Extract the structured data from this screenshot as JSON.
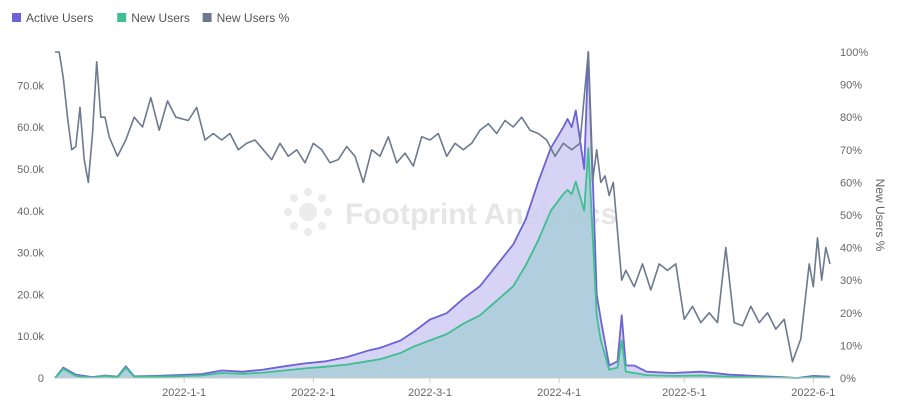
{
  "chart_data": {
    "type": "area",
    "watermark": "Footprint Analytics",
    "legend_position": "top-left",
    "grid": false,
    "x": {
      "start": "2021-12-01",
      "end": "2022-06-05",
      "ticks": [
        "2022-1-1",
        "2022-2-1",
        "2022-3-1",
        "2022-4-1",
        "2022-5-1",
        "2022-6-1"
      ]
    },
    "y_left": {
      "min": 0,
      "max": 78000,
      "ticks": [
        0,
        10000,
        20000,
        30000,
        40000,
        50000,
        60000,
        70000
      ],
      "tick_labels": [
        "0",
        "10.0k",
        "20.0k",
        "30.0k",
        "40.0k",
        "50.0k",
        "60.0k",
        "70.0k"
      ]
    },
    "y_right": {
      "title": "New Users %",
      "min": 0,
      "max": 100,
      "ticks": [
        0,
        10,
        20,
        30,
        40,
        50,
        60,
        70,
        80,
        90,
        100
      ],
      "tick_labels": [
        "0%",
        "10%",
        "20%",
        "30%",
        "40%",
        "50%",
        "60%",
        "70%",
        "80%",
        "90%",
        "100%"
      ]
    },
    "series": [
      {
        "name": "Active Users",
        "axis": "left",
        "color": "#6b63d6",
        "fill": "#cfcbf3",
        "points": [
          [
            "2021-12-01",
            0
          ],
          [
            "2021-12-03",
            2500
          ],
          [
            "2021-12-06",
            800
          ],
          [
            "2021-12-10",
            200
          ],
          [
            "2021-12-13",
            600
          ],
          [
            "2021-12-16",
            300
          ],
          [
            "2021-12-18",
            2800
          ],
          [
            "2021-12-20",
            400
          ],
          [
            "2021-12-25",
            500
          ],
          [
            "2021-12-30",
            700
          ],
          [
            "2022-01-05",
            900
          ],
          [
            "2022-01-10",
            1800
          ],
          [
            "2022-01-15",
            1500
          ],
          [
            "2022-01-20",
            2000
          ],
          [
            "2022-01-25",
            2800
          ],
          [
            "2022-01-30",
            3500
          ],
          [
            "2022-02-04",
            4000
          ],
          [
            "2022-02-09",
            5000
          ],
          [
            "2022-02-14",
            6500
          ],
          [
            "2022-02-17",
            7200
          ],
          [
            "2022-02-22",
            9000
          ],
          [
            "2022-02-25",
            11000
          ],
          [
            "2022-03-01",
            14000
          ],
          [
            "2022-03-05",
            15500
          ],
          [
            "2022-03-09",
            19000
          ],
          [
            "2022-03-13",
            22000
          ],
          [
            "2022-03-17",
            27000
          ],
          [
            "2022-03-21",
            32000
          ],
          [
            "2022-03-24",
            38000
          ],
          [
            "2022-03-27",
            47000
          ],
          [
            "2022-03-30",
            55000
          ],
          [
            "2022-04-02",
            60000
          ],
          [
            "2022-04-03",
            62000
          ],
          [
            "2022-04-04",
            60000
          ],
          [
            "2022-04-05",
            64000
          ],
          [
            "2022-04-07",
            50000
          ],
          [
            "2022-04-08",
            78000
          ],
          [
            "2022-04-09",
            50000
          ],
          [
            "2022-04-10",
            20000
          ],
          [
            "2022-04-11",
            14000
          ],
          [
            "2022-04-13",
            3000
          ],
          [
            "2022-04-15",
            4000
          ],
          [
            "2022-04-16",
            15000
          ],
          [
            "2022-04-17",
            3000
          ],
          [
            "2022-04-19",
            3000
          ],
          [
            "2022-04-22",
            1500
          ],
          [
            "2022-04-28",
            1200
          ],
          [
            "2022-05-05",
            1500
          ],
          [
            "2022-05-12",
            800
          ],
          [
            "2022-05-20",
            400
          ],
          [
            "2022-05-25",
            200
          ],
          [
            "2022-05-28",
            0
          ],
          [
            "2022-06-01",
            500
          ],
          [
            "2022-06-05",
            300
          ]
        ]
      },
      {
        "name": "New Users",
        "axis": "left",
        "color": "#3fbf8f",
        "fill": "#a9cdd8",
        "points": [
          [
            "2021-12-01",
            0
          ],
          [
            "2021-12-03",
            2200
          ],
          [
            "2021-12-06",
            500
          ],
          [
            "2021-12-10",
            100
          ],
          [
            "2021-12-13",
            500
          ],
          [
            "2021-12-16",
            200
          ],
          [
            "2021-12-18",
            2500
          ],
          [
            "2021-12-20",
            300
          ],
          [
            "2021-12-25",
            300
          ],
          [
            "2021-12-30",
            400
          ],
          [
            "2022-01-05",
            600
          ],
          [
            "2022-01-10",
            1200
          ],
          [
            "2022-01-15",
            1000
          ],
          [
            "2022-01-20",
            1300
          ],
          [
            "2022-01-25",
            1800
          ],
          [
            "2022-01-30",
            2300
          ],
          [
            "2022-02-04",
            2700
          ],
          [
            "2022-02-09",
            3200
          ],
          [
            "2022-02-14",
            4000
          ],
          [
            "2022-02-17",
            4500
          ],
          [
            "2022-02-22",
            6000
          ],
          [
            "2022-02-25",
            7500
          ],
          [
            "2022-03-01",
            9000
          ],
          [
            "2022-03-05",
            10500
          ],
          [
            "2022-03-09",
            13000
          ],
          [
            "2022-03-13",
            15000
          ],
          [
            "2022-03-17",
            18500
          ],
          [
            "2022-03-21",
            22000
          ],
          [
            "2022-03-24",
            27000
          ],
          [
            "2022-03-27",
            33000
          ],
          [
            "2022-03-30",
            40000
          ],
          [
            "2022-04-02",
            44000
          ],
          [
            "2022-04-03",
            45000
          ],
          [
            "2022-04-04",
            44000
          ],
          [
            "2022-04-05",
            47000
          ],
          [
            "2022-04-07",
            40000
          ],
          [
            "2022-04-08",
            55000
          ],
          [
            "2022-04-09",
            35000
          ],
          [
            "2022-04-10",
            15000
          ],
          [
            "2022-04-11",
            9000
          ],
          [
            "2022-04-13",
            2000
          ],
          [
            "2022-04-15",
            2500
          ],
          [
            "2022-04-16",
            9000
          ],
          [
            "2022-04-17",
            1500
          ],
          [
            "2022-04-19",
            1200
          ],
          [
            "2022-04-22",
            700
          ],
          [
            "2022-04-28",
            500
          ],
          [
            "2022-05-05",
            600
          ],
          [
            "2022-05-12",
            300
          ],
          [
            "2022-05-20",
            150
          ],
          [
            "2022-05-25",
            80
          ],
          [
            "2022-05-28",
            0
          ],
          [
            "2022-06-01",
            200
          ],
          [
            "2022-06-05",
            100
          ]
        ]
      },
      {
        "name": "New Users %",
        "axis": "right",
        "color": "#6b7a8f",
        "fill": "none",
        "points": [
          [
            "2021-12-01",
            100
          ],
          [
            "2021-12-02",
            100
          ],
          [
            "2021-12-03",
            92
          ],
          [
            "2021-12-04",
            80
          ],
          [
            "2021-12-05",
            70
          ],
          [
            "2021-12-06",
            71
          ],
          [
            "2021-12-07",
            83
          ],
          [
            "2021-12-08",
            67
          ],
          [
            "2021-12-09",
            60
          ],
          [
            "2021-12-10",
            75
          ],
          [
            "2021-12-11",
            97
          ],
          [
            "2021-12-12",
            80
          ],
          [
            "2021-12-13",
            80
          ],
          [
            "2021-12-14",
            74
          ],
          [
            "2021-12-16",
            68
          ],
          [
            "2021-12-18",
            73
          ],
          [
            "2021-12-20",
            80
          ],
          [
            "2021-12-22",
            77
          ],
          [
            "2021-12-24",
            86
          ],
          [
            "2021-12-26",
            76
          ],
          [
            "2021-12-28",
            85
          ],
          [
            "2021-12-30",
            80
          ],
          [
            "2022-01-02",
            79
          ],
          [
            "2022-01-04",
            83
          ],
          [
            "2022-01-06",
            73
          ],
          [
            "2022-01-08",
            75
          ],
          [
            "2022-01-10",
            73
          ],
          [
            "2022-01-12",
            75
          ],
          [
            "2022-01-14",
            70
          ],
          [
            "2022-01-16",
            72
          ],
          [
            "2022-01-18",
            73
          ],
          [
            "2022-01-20",
            70
          ],
          [
            "2022-01-22",
            67
          ],
          [
            "2022-01-24",
            72
          ],
          [
            "2022-01-26",
            68
          ],
          [
            "2022-01-28",
            70
          ],
          [
            "2022-01-30",
            66
          ],
          [
            "2022-02-01",
            72
          ],
          [
            "2022-02-03",
            70
          ],
          [
            "2022-02-05",
            66
          ],
          [
            "2022-02-07",
            67
          ],
          [
            "2022-02-09",
            71
          ],
          [
            "2022-02-11",
            68
          ],
          [
            "2022-02-13",
            60
          ],
          [
            "2022-02-15",
            70
          ],
          [
            "2022-02-17",
            68
          ],
          [
            "2022-02-19",
            74
          ],
          [
            "2022-02-21",
            66
          ],
          [
            "2022-02-23",
            69
          ],
          [
            "2022-02-25",
            65
          ],
          [
            "2022-02-27",
            74
          ],
          [
            "2022-03-01",
            73
          ],
          [
            "2022-03-03",
            75
          ],
          [
            "2022-03-05",
            68
          ],
          [
            "2022-03-07",
            72
          ],
          [
            "2022-03-09",
            70
          ],
          [
            "2022-03-11",
            72
          ],
          [
            "2022-03-13",
            76
          ],
          [
            "2022-03-15",
            78
          ],
          [
            "2022-03-17",
            75
          ],
          [
            "2022-03-19",
            79
          ],
          [
            "2022-03-21",
            77
          ],
          [
            "2022-03-23",
            80
          ],
          [
            "2022-03-25",
            76
          ],
          [
            "2022-03-27",
            75
          ],
          [
            "2022-03-29",
            73
          ],
          [
            "2022-03-31",
            68
          ],
          [
            "2022-04-02",
            72
          ],
          [
            "2022-04-04",
            70
          ],
          [
            "2022-04-06",
            72
          ],
          [
            "2022-04-08",
            100
          ],
          [
            "2022-04-09",
            60
          ],
          [
            "2022-04-10",
            70
          ],
          [
            "2022-04-11",
            60
          ],
          [
            "2022-04-12",
            62
          ],
          [
            "2022-04-13",
            56
          ],
          [
            "2022-04-14",
            60
          ],
          [
            "2022-04-16",
            30
          ],
          [
            "2022-04-17",
            33
          ],
          [
            "2022-04-19",
            28
          ],
          [
            "2022-04-21",
            35
          ],
          [
            "2022-04-23",
            27
          ],
          [
            "2022-04-25",
            35
          ],
          [
            "2022-04-27",
            33
          ],
          [
            "2022-04-29",
            35
          ],
          [
            "2022-05-01",
            18
          ],
          [
            "2022-05-03",
            22
          ],
          [
            "2022-05-05",
            17
          ],
          [
            "2022-05-07",
            20
          ],
          [
            "2022-05-09",
            17
          ],
          [
            "2022-05-11",
            40
          ],
          [
            "2022-05-13",
            17
          ],
          [
            "2022-05-15",
            16
          ],
          [
            "2022-05-17",
            22
          ],
          [
            "2022-05-19",
            17
          ],
          [
            "2022-05-21",
            20
          ],
          [
            "2022-05-23",
            15
          ],
          [
            "2022-05-25",
            18
          ],
          [
            "2022-05-27",
            5
          ],
          [
            "2022-05-29",
            12
          ],
          [
            "2022-05-31",
            35
          ],
          [
            "2022-06-01",
            28
          ],
          [
            "2022-06-02",
            43
          ],
          [
            "2022-06-03",
            30
          ],
          [
            "2022-06-04",
            40
          ],
          [
            "2022-06-05",
            35
          ]
        ]
      }
    ]
  }
}
